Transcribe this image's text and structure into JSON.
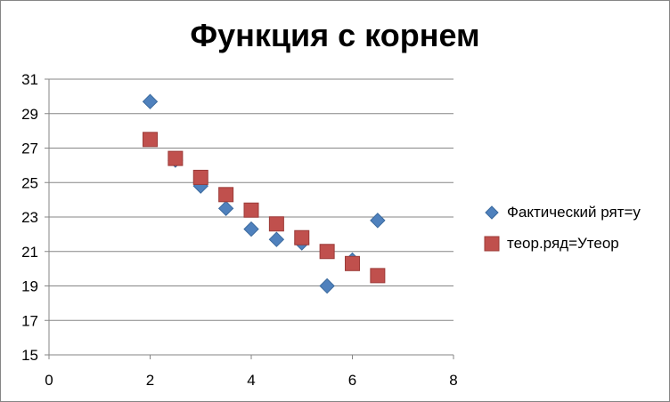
{
  "chart_data": {
    "type": "scatter",
    "title": "Функция с корнем",
    "xlabel": "",
    "ylabel": "",
    "xlim": [
      0,
      8
    ],
    "ylim": [
      15,
      31
    ],
    "xticks": [
      0,
      2,
      4,
      6,
      8
    ],
    "yticks": [
      15,
      17,
      19,
      21,
      23,
      25,
      27,
      29,
      31
    ],
    "grid": "horizontal",
    "legend_position": "right",
    "series": [
      {
        "name": "Фактический рят=у",
        "marker": "diamond",
        "color": "#4F81BD",
        "points": [
          {
            "x": 2,
            "y": 29.7
          },
          {
            "x": 2.5,
            "y": 26.3
          },
          {
            "x": 3,
            "y": 24.8
          },
          {
            "x": 3.5,
            "y": 23.5
          },
          {
            "x": 4,
            "y": 22.3
          },
          {
            "x": 4.5,
            "y": 21.7
          },
          {
            "x": 5,
            "y": 21.5
          },
          {
            "x": 5.5,
            "y": 19.0
          },
          {
            "x": 6,
            "y": 20.5
          },
          {
            "x": 6.5,
            "y": 22.8
          }
        ]
      },
      {
        "name": "теор.ряд=Утеор",
        "marker": "square",
        "color": "#C0504D",
        "points": [
          {
            "x": 2,
            "y": 27.5
          },
          {
            "x": 2.5,
            "y": 26.4
          },
          {
            "x": 3,
            "y": 25.3
          },
          {
            "x": 3.5,
            "y": 24.3
          },
          {
            "x": 4,
            "y": 23.4
          },
          {
            "x": 4.5,
            "y": 22.6
          },
          {
            "x": 5,
            "y": 21.8
          },
          {
            "x": 5.5,
            "y": 21.0
          },
          {
            "x": 6,
            "y": 20.3
          },
          {
            "x": 6.5,
            "y": 19.6
          }
        ]
      }
    ]
  }
}
